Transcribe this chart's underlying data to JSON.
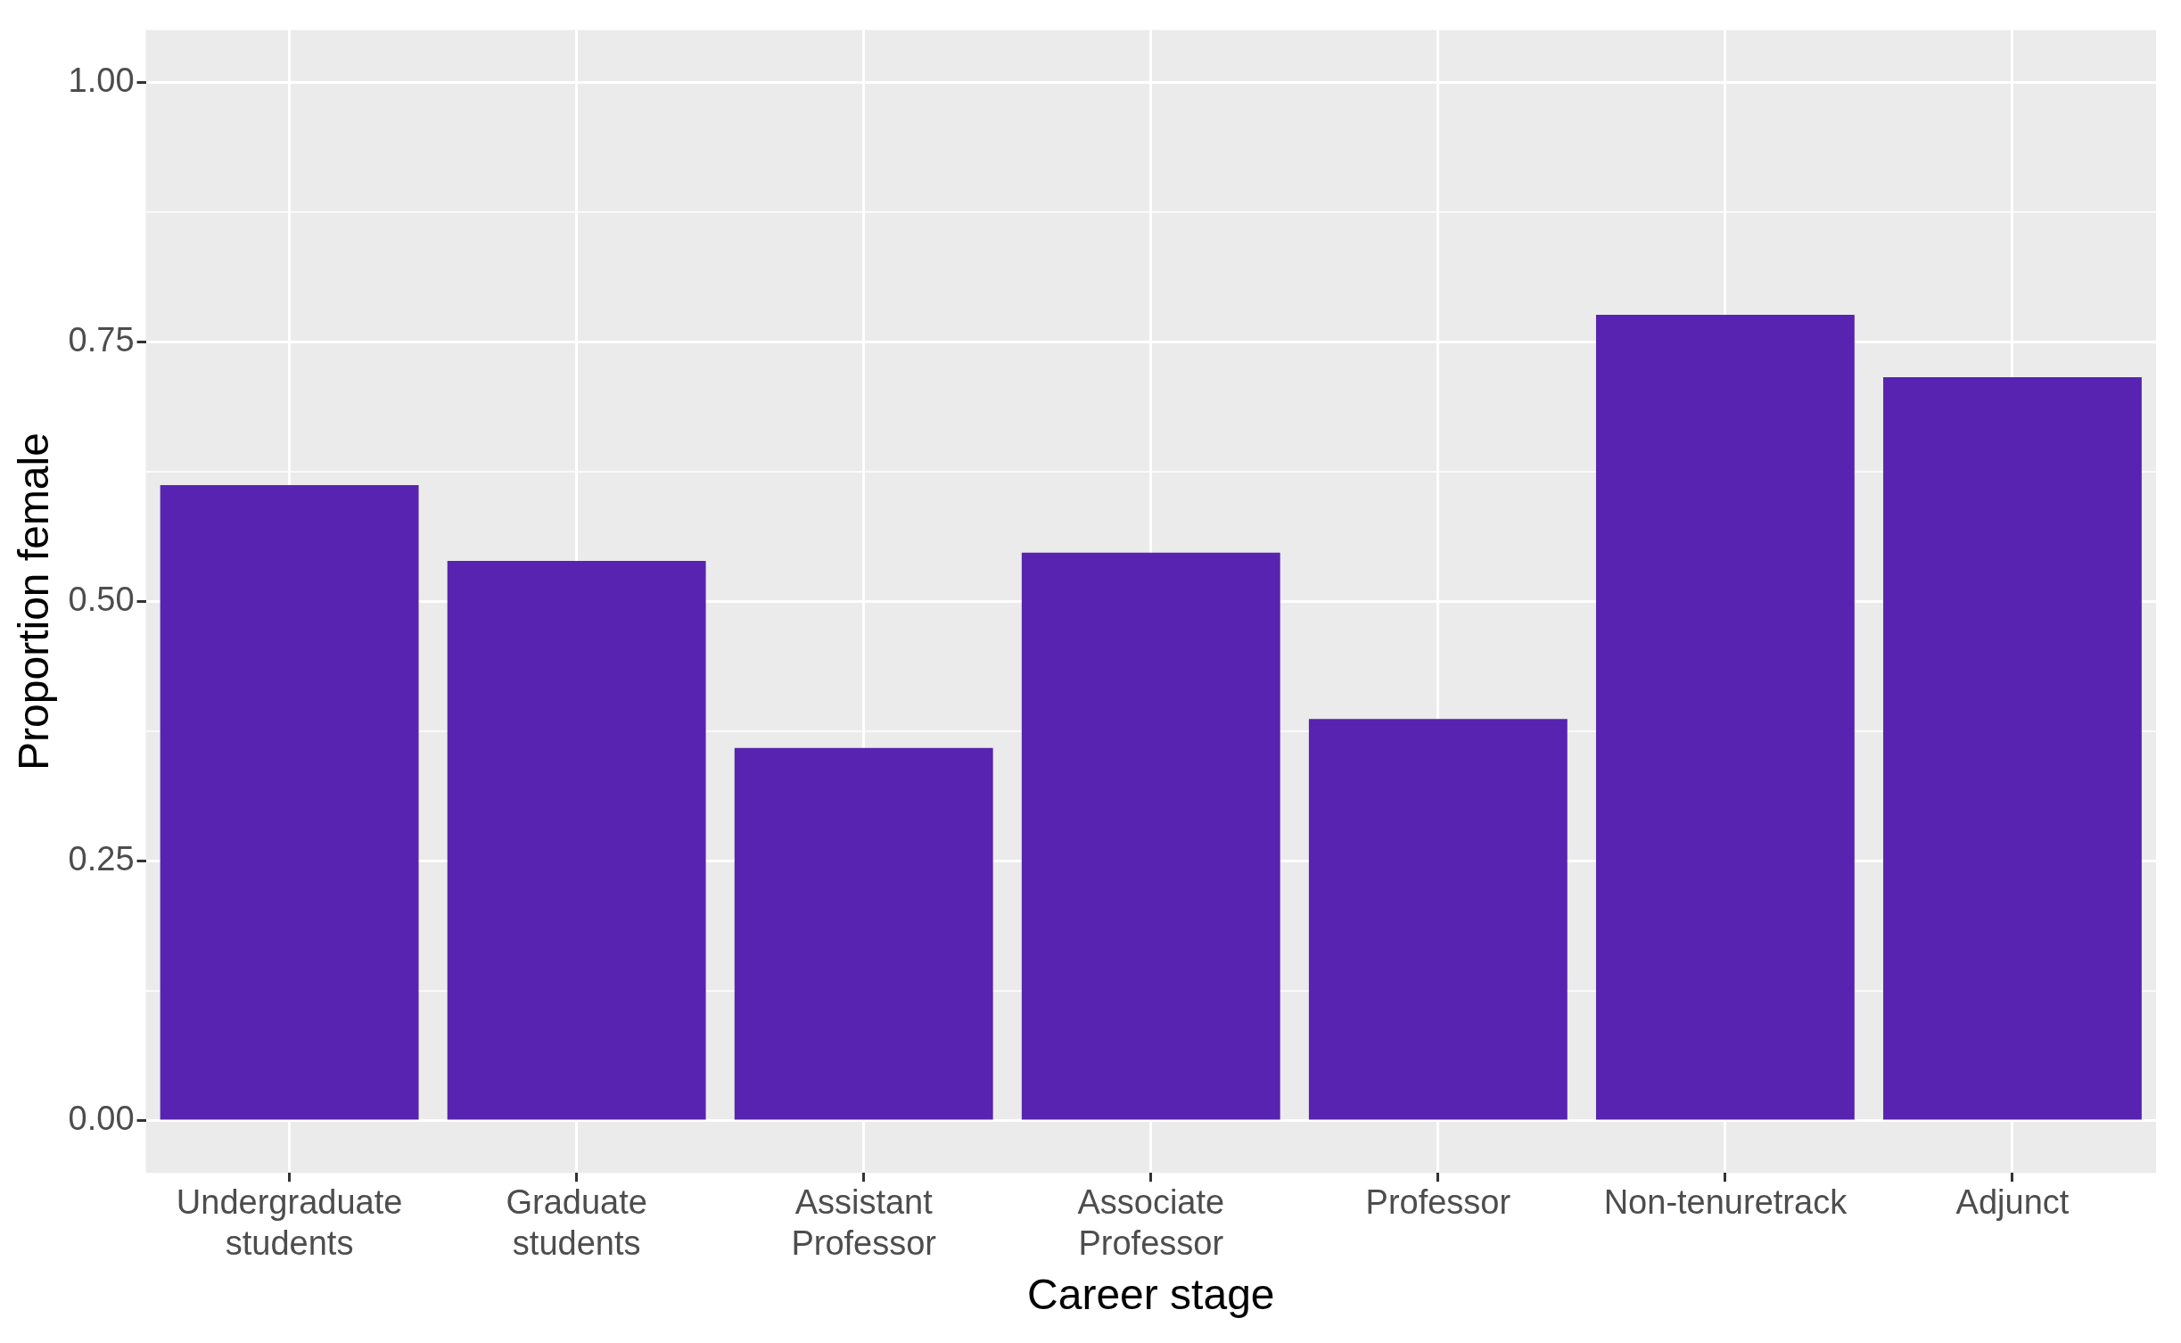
{
  "chart_data": {
    "type": "bar",
    "xlabel": "Career stage",
    "ylabel": "Proportion female",
    "categories": [
      "Undergraduate students",
      "Graduate students",
      "Assistant Professor",
      "Associate Professor",
      "Professor",
      "Non-tenuretrack",
      "Adjunct"
    ],
    "values": [
      0.612,
      0.539,
      0.359,
      0.547,
      0.387,
      0.776,
      0.716
    ],
    "color": "#5823b0",
    "ylim": [
      -0.05,
      1.05
    ],
    "yticks": [
      {
        "value": 0,
        "label": "0.00"
      },
      {
        "value": 0.25,
        "label": "0.25"
      },
      {
        "value": 0.5,
        "label": "0.50"
      },
      {
        "value": 0.75,
        "label": "0.75"
      },
      {
        "value": 1,
        "label": "1.00"
      }
    ],
    "grid": true
  }
}
